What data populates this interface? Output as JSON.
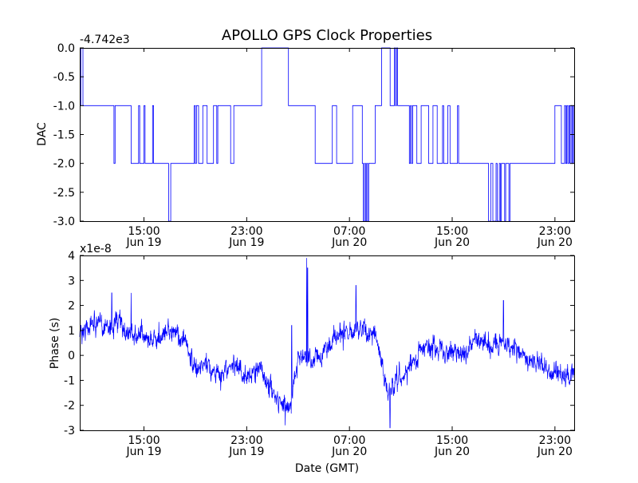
{
  "title": "APOLLO GPS Clock Properties",
  "colors": {
    "series": "#0000ff",
    "axes": "#000000",
    "background": "#ffffff"
  },
  "chart_data": [
    {
      "type": "line",
      "panel": "top",
      "title": "APOLLO GPS Clock Properties",
      "ylabel": "DAC",
      "xlabel": "",
      "offset_text": "-4.742e3",
      "ylim": [
        -3.0,
        0.0
      ],
      "yticks": [
        0.0,
        -0.5,
        -1.0,
        -1.5,
        -2.0,
        -2.5,
        -3.0
      ],
      "ytick_labels": [
        "0.0",
        "-0.5",
        "-1.0",
        "-1.5",
        "-2.0",
        "-2.5",
        "-3.0"
      ],
      "xlim": [
        "Jun 19 10:00",
        "Jun 21 00:30"
      ],
      "xticks": [
        {
          "top": "15:00",
          "bottom": "Jun 19"
        },
        {
          "top": "23:00",
          "bottom": "Jun 19"
        },
        {
          "top": "07:00",
          "bottom": "Jun 20"
        },
        {
          "top": "15:00",
          "bottom": "Jun 20"
        },
        {
          "top": "23:00",
          "bottom": "Jun 20"
        }
      ],
      "grid": false,
      "series": [
        {
          "color": "#0000ff",
          "points": [
            [
              "Jun 19 10:00",
              -1.0
            ],
            [
              "Jun 19 10:05",
              0.0
            ],
            [
              "Jun 19 10:15",
              -1.0
            ],
            [
              "Jun 19 12:35",
              -1.0
            ],
            [
              "Jun 19 12:40",
              -2.0
            ],
            [
              "Jun 19 12:45",
              -1.0
            ],
            [
              "Jun 19 13:55",
              -1.0
            ],
            [
              "Jun 19 14:00",
              -2.0
            ],
            [
              "Jun 19 14:30",
              -2.0
            ],
            [
              "Jun 19 14:35",
              -1.0
            ],
            [
              "Jun 19 14:40",
              -2.0
            ],
            [
              "Jun 19 14:55",
              -2.0
            ],
            [
              "Jun 19 15:00",
              -1.0
            ],
            [
              "Jun 19 15:05",
              -2.0
            ],
            [
              "Jun 19 15:35",
              -2.0
            ],
            [
              "Jun 19 15:40",
              -1.0
            ],
            [
              "Jun 19 15:45",
              -2.0
            ],
            [
              "Jun 19 16:50",
              -2.0
            ],
            [
              "Jun 19 16:55",
              -3.0
            ],
            [
              "Jun 19 17:00",
              -3.0
            ],
            [
              "Jun 19 17:05",
              -2.0
            ],
            [
              "Jun 19 18:50",
              -2.0
            ],
            [
              "Jun 19 18:55",
              -1.0
            ],
            [
              "Jun 19 19:00",
              -2.0
            ],
            [
              "Jun 19 19:05",
              -1.0
            ],
            [
              "Jun 19 19:10",
              -1.0
            ],
            [
              "Jun 19 19:15",
              -2.0
            ],
            [
              "Jun 19 19:30",
              -2.0
            ],
            [
              "Jun 19 19:35",
              -1.0
            ],
            [
              "Jun 19 19:50",
              -1.0
            ],
            [
              "Jun 19 19:55",
              -2.0
            ],
            [
              "Jun 19 20:20",
              -2.0
            ],
            [
              "Jun 19 20:25",
              -1.0
            ],
            [
              "Jun 19 20:35",
              -1.0
            ],
            [
              "Jun 19 20:40",
              -2.0
            ],
            [
              "Jun 19 20:45",
              -1.0
            ],
            [
              "Jun 19 21:40",
              -1.0
            ],
            [
              "Jun 19 21:45",
              -2.0
            ],
            [
              "Jun 19 21:55",
              -2.0
            ],
            [
              "Jun 19 22:00",
              -1.0
            ],
            [
              "Jun 19 23:40",
              -1.0
            ],
            [
              "Jun 19 23:45",
              -1.0
            ],
            [
              "Jun 20 00:05",
              -1.0
            ],
            [
              "Jun 20 00:10",
              0.0
            ],
            [
              "Jun 20 02:10",
              0.0
            ],
            [
              "Jun 20 02:15",
              -1.0
            ],
            [
              "Jun 20 04:15",
              -1.0
            ],
            [
              "Jun 20 04:20",
              -2.0
            ],
            [
              "Jun 20 05:35",
              -2.0
            ],
            [
              "Jun 20 05:40",
              -1.0
            ],
            [
              "Jun 20 05:55",
              -1.0
            ],
            [
              "Jun 20 06:00",
              -2.0
            ],
            [
              "Jun 20 07:10",
              -2.0
            ],
            [
              "Jun 20 07:15",
              -1.0
            ],
            [
              "Jun 20 07:55",
              -1.0
            ],
            [
              "Jun 20 08:00",
              -2.0
            ],
            [
              "Jun 20 08:05",
              -3.0
            ],
            [
              "Jun 20 08:10",
              -2.0
            ],
            [
              "Jun 20 08:15",
              -3.0
            ],
            [
              "Jun 20 08:20",
              -2.0
            ],
            [
              "Jun 20 08:25",
              -3.0
            ],
            [
              "Jun 20 08:30",
              -2.0
            ],
            [
              "Jun 20 08:55",
              -2.0
            ],
            [
              "Jun 20 09:00",
              -1.0
            ],
            [
              "Jun 20 09:25",
              -1.0
            ],
            [
              "Jun 20 09:30",
              0.0
            ],
            [
              "Jun 20 10:05",
              0.0
            ],
            [
              "Jun 20 10:10",
              -1.0
            ],
            [
              "Jun 20 10:25",
              -1.0
            ],
            [
              "Jun 20 10:30",
              0.0
            ],
            [
              "Jun 20 10:35",
              -1.0
            ],
            [
              "Jun 20 10:40",
              0.0
            ],
            [
              "Jun 20 10:45",
              -1.0
            ],
            [
              "Jun 20 11:35",
              -1.0
            ],
            [
              "Jun 20 11:40",
              -2.0
            ],
            [
              "Jun 20 11:45",
              -1.0
            ],
            [
              "Jun 20 11:50",
              -2.0
            ],
            [
              "Jun 20 11:55",
              -1.0
            ],
            [
              "Jun 20 12:10",
              -1.0
            ],
            [
              "Jun 20 12:15",
              -2.0
            ],
            [
              "Jun 20 12:30",
              -2.0
            ],
            [
              "Jun 20 12:35",
              -1.0
            ],
            [
              "Jun 20 13:05",
              -1.0
            ],
            [
              "Jun 20 13:10",
              -2.0
            ],
            [
              "Jun 20 13:25",
              -2.0
            ],
            [
              "Jun 20 13:30",
              -1.0
            ],
            [
              "Jun 20 13:45",
              -1.0
            ],
            [
              "Jun 20 13:50",
              -2.0
            ],
            [
              "Jun 20 14:10",
              -2.0
            ],
            [
              "Jun 20 14:15",
              -1.0
            ],
            [
              "Jun 20 14:20",
              -2.0
            ],
            [
              "Jun 20 14:35",
              -2.0
            ],
            [
              "Jun 20 14:40",
              -1.0
            ],
            [
              "Jun 20 14:45",
              -1.0
            ],
            [
              "Jun 20 14:50",
              -2.0
            ],
            [
              "Jun 20 15:20",
              -2.0
            ],
            [
              "Jun 20 15:25",
              -1.0
            ],
            [
              "Jun 20 15:30",
              -2.0
            ],
            [
              "Jun 20 17:45",
              -2.0
            ],
            [
              "Jun 20 17:50",
              -3.0
            ],
            [
              "Jun 20 17:55",
              -3.0
            ],
            [
              "Jun 20 18:00",
              -2.0
            ],
            [
              "Jun 20 18:05",
              -2.0
            ],
            [
              "Jun 20 18:10",
              -3.0
            ],
            [
              "Jun 20 18:20",
              -3.0
            ],
            [
              "Jun 20 18:25",
              -2.0
            ],
            [
              "Jun 20 18:30",
              -3.0
            ],
            [
              "Jun 20 18:40",
              -2.0
            ],
            [
              "Jun 20 18:45",
              -3.0
            ],
            [
              "Jun 20 18:50",
              -2.0
            ],
            [
              "Jun 20 19:00",
              -2.0
            ],
            [
              "Jun 20 19:05",
              -3.0
            ],
            [
              "Jun 20 19:10",
              -2.0
            ],
            [
              "Jun 20 19:20",
              -2.0
            ],
            [
              "Jun 20 19:25",
              -3.0
            ],
            [
              "Jun 20 19:30",
              -2.0
            ],
            [
              "Jun 20 22:55",
              -2.0
            ],
            [
              "Jun 20 23:00",
              -1.0
            ],
            [
              "Jun 20 23:25",
              -1.0
            ],
            [
              "Jun 20 23:30",
              -2.0
            ],
            [
              "Jun 20 23:40",
              -2.0
            ],
            [
              "Jun 20 23:45",
              -1.0
            ],
            [
              "Jun 20 23:50",
              -2.0
            ],
            [
              "Jun 20 23:55",
              -1.0
            ],
            [
              "Jun 21 00:00",
              -2.0
            ],
            [
              "Jun 21 00:05",
              -1.0
            ],
            [
              "Jun 21 00:10",
              -2.0
            ],
            [
              "Jun 21 00:15",
              -1.0
            ],
            [
              "Jun 21 00:20",
              -2.0
            ],
            [
              "Jun 21 00:25",
              -1.0
            ],
            [
              "Jun 21 00:30",
              -2.0
            ]
          ]
        }
      ]
    },
    {
      "type": "line",
      "panel": "bottom",
      "title": "",
      "ylabel": "Phase (s)",
      "xlabel": "Date (GMT)",
      "offset_text": "x1e-8",
      "ylim": [
        -3,
        4
      ],
      "yticks": [
        4,
        3,
        2,
        1,
        0,
        -1,
        -2,
        -3
      ],
      "ytick_labels": [
        "4",
        "3",
        "2",
        "1",
        "0",
        "-1",
        "-2",
        "-3"
      ],
      "xlim": [
        "Jun 19 10:00",
        "Jun 21 00:30"
      ],
      "xticks": [
        {
          "top": "15:00",
          "bottom": "Jun 19"
        },
        {
          "top": "23:00",
          "bottom": "Jun 19"
        },
        {
          "top": "07:00",
          "bottom": "Jun 20"
        },
        {
          "top": "15:00",
          "bottom": "Jun 20"
        },
        {
          "top": "23:00",
          "bottom": "Jun 20"
        }
      ],
      "grid": false,
      "series": [
        {
          "color": "#0000ff",
          "trend": [
            [
              "Jun 19 10:00",
              0.9
            ],
            [
              "Jun 19 11:00",
              1.3
            ],
            [
              "Jun 19 12:00",
              1.1
            ],
            [
              "Jun 19 13:00",
              1.3
            ],
            [
              "Jun 19 14:00",
              0.8
            ],
            [
              "Jun 19 15:00",
              0.8
            ],
            [
              "Jun 19 16:00",
              0.6
            ],
            [
              "Jun 19 17:00",
              1.0
            ],
            [
              "Jun 19 18:00",
              0.7
            ],
            [
              "Jun 19 19:00",
              -0.6
            ],
            [
              "Jun 19 20:00",
              -0.4
            ],
            [
              "Jun 19 21:00",
              -0.8
            ],
            [
              "Jun 19 22:00",
              -0.3
            ],
            [
              "Jun 19 23:00",
              -0.9
            ],
            [
              "Jun 20 00:00",
              -0.5
            ],
            [
              "Jun 20 01:00",
              -1.5
            ],
            [
              "Jun 20 02:00",
              -2.0
            ],
            [
              "Jun 20 02:30",
              -1.8
            ],
            [
              "Jun 20 03:00",
              0.0
            ],
            [
              "Jun 20 04:00",
              -0.3
            ],
            [
              "Jun 20 05:00",
              0.2
            ],
            [
              "Jun 20 06:00",
              0.7
            ],
            [
              "Jun 20 07:00",
              0.9
            ],
            [
              "Jun 20 08:00",
              1.1
            ],
            [
              "Jun 20 09:00",
              0.8
            ],
            [
              "Jun 20 10:00",
              -1.5
            ],
            [
              "Jun 20 11:00",
              -1.0
            ],
            [
              "Jun 20 12:00",
              -0.2
            ],
            [
              "Jun 20 13:00",
              0.4
            ],
            [
              "Jun 20 14:00",
              0.3
            ],
            [
              "Jun 20 15:00",
              0.1
            ],
            [
              "Jun 20 16:00",
              0.2
            ],
            [
              "Jun 20 17:00",
              0.6
            ],
            [
              "Jun 20 18:00",
              0.4
            ],
            [
              "Jun 20 19:00",
              0.5
            ],
            [
              "Jun 20 20:00",
              0.3
            ],
            [
              "Jun 20 21:00",
              -0.2
            ],
            [
              "Jun 20 22:00",
              -0.4
            ],
            [
              "Jun 20 23:00",
              -0.8
            ],
            [
              "Jun 21 00:00",
              -0.9
            ],
            [
              "Jun 21 00:30",
              -0.8
            ]
          ],
          "spikes": [
            [
              "Jun 20 03:40",
              3.9
            ],
            [
              "Jun 20 03:45",
              3.5
            ],
            [
              "Jun 20 02:30",
              1.2
            ],
            [
              "Jun 20 07:30",
              2.8
            ],
            [
              "Jun 19 12:30",
              2.5
            ],
            [
              "Jun 19 14:00",
              2.5
            ],
            [
              "Jun 20 02:00",
              -2.8
            ],
            [
              "Jun 20 10:10",
              -2.9
            ],
            [
              "Jun 20 19:00",
              2.2
            ]
          ]
        }
      ]
    }
  ]
}
